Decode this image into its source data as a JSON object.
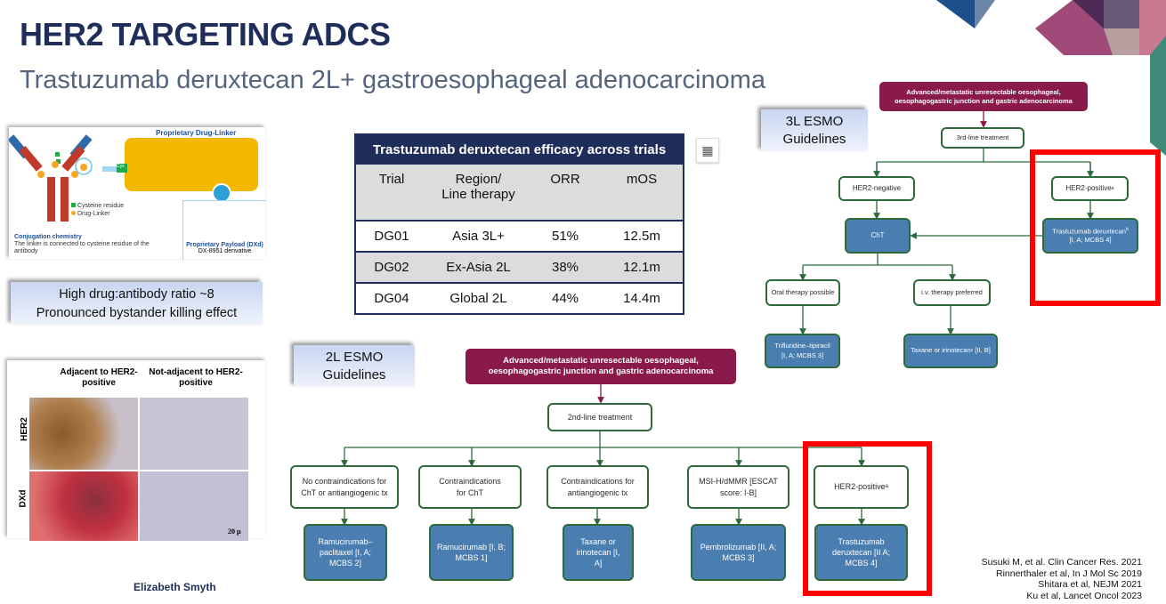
{
  "slide": {
    "title": "HER2 TARGETING ADCS",
    "subtitle": "Trastuzumab deruxtecan 2L+ gastroesophageal adenocarcinoma",
    "author": "Elizabeth Smyth"
  },
  "adc_figure": {
    "drug_linker_label": "Proprietary Drug-Linker",
    "cys_label": "Cys",
    "legend": [
      "Cysteine residue",
      "Drug-Linker"
    ],
    "conjugation_title": "Conjugation chemistry",
    "conjugation_text": "The linker is connected to cysteine residue of the antibody",
    "payload_title": "Proprietary Payload (DXd)",
    "payload_sub": "DX-8951 derivative",
    "colors": {
      "antibody_heavy": "#c0392b",
      "antibody_light": "#2e6aa8",
      "linker_bg": "#f5b800",
      "cysteine": "#1faa4a",
      "drug_linker": "#f5a623"
    }
  },
  "callout_dar": {
    "line1": "High drug:antibody ratio ~8",
    "line2": "Pronounced bystander killing effect"
  },
  "histology": {
    "col1": "Adjacent to HER2-positive",
    "col2": "Not-adjacent to HER2-positive",
    "row1": "HER2",
    "row2": "DXd",
    "scale": "20 μ"
  },
  "table": {
    "title": "Trastuzumab deruxtecan efficacy across trials",
    "headers": [
      "Trial",
      "Region/\nLine therapy",
      "ORR",
      "mOS"
    ],
    "rows": [
      [
        "DG01",
        "Asia 3L+",
        "51%",
        "12.5m"
      ],
      [
        "DG02",
        "Ex-Asia 2L",
        "38%",
        "12.1m"
      ],
      [
        "DG04",
        "Global 2L",
        "44%",
        "14.4m"
      ]
    ],
    "icon": "table-icon"
  },
  "esmo3l": {
    "label1": "3L ESMO",
    "label2": "Guidelines",
    "top": "Advanced/metastatic unresectable oesophageal, oesophagogastric junction and gastric adenocarcinoma",
    "line": "3rd-line treatment",
    "her2neg": "HER2-negative",
    "her2pos": "HER2-positive",
    "her2pos_sup": "a",
    "cht": "ChT",
    "tdxd": "Trastuzumab deruxtecan",
    "tdxd_sup": "b",
    "tdxd_grade": "[I, A; MCBS 4]",
    "oral": "Oral therapy possible",
    "iv": "i.v. therapy preferred",
    "tri": "Trifluridine–tipiracil",
    "tri_grade": "[I, A; MCBS 3]",
    "tax": "Taxane or irinotecan",
    "tax_sup": "c",
    "tax_grade": "[II, B]"
  },
  "esmo2l": {
    "label1": "2L ESMO",
    "label2": "Guidelines",
    "top": "Advanced/metastatic unresectable oesophageal, oesophagogastric junction and gastric adenocarcinoma",
    "line": "2nd-line treatment",
    "conditions": [
      "No contraindications for ChT or antiangiogenic tx",
      "Contraindications for ChT",
      "Contraindications for antiangiogenic tx",
      "MSI-H/dMMR [ESCAT score: I-B]",
      "HER2-positive"
    ],
    "treatments": [
      "Ramucirumab–paclitaxel [I, A; MCBS 2]",
      "Ramucirumab [I, B; MCBS 1]",
      "Taxane or irinotecan [I, A]",
      "Pembrolizumab [II, A; MCBS 3]",
      "Trastuzumab deruxtecan [II A; MCBS 4]"
    ],
    "her2_sup": "a"
  },
  "citations": [
    "Susuki M, et al. Clin Cancer Res. 2021",
    "Rinnerthaler et al, In J Mol Sc 2019",
    "Shitara et al, NEJM 2021",
    "Ku et al, Lancet Oncol 2023"
  ],
  "colors": {
    "title": "#1f2d5a",
    "maroon": "#8a1a4a",
    "flow_blue": "#4a7db0",
    "flow_green": "#2e6a3c",
    "highlight": "#ff0000"
  }
}
